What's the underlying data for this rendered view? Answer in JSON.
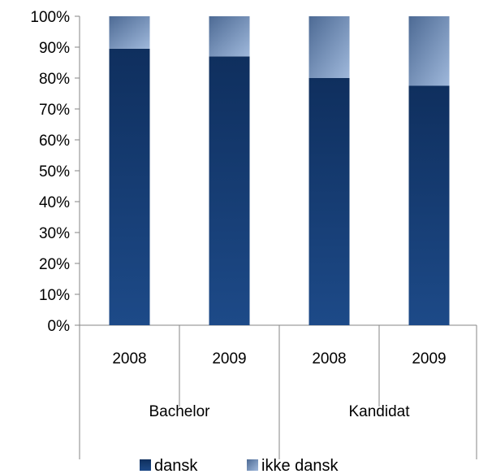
{
  "chart_data": {
    "type": "bar",
    "stacked": true,
    "percent": true,
    "groups": [
      {
        "label": "Bachelor",
        "categories": [
          "2008",
          "2009"
        ]
      },
      {
        "label": "Kandidat",
        "categories": [
          "2008",
          "2009"
        ]
      }
    ],
    "categories": [
      "2008",
      "2009",
      "2008",
      "2009"
    ],
    "series": [
      {
        "name": "dansk",
        "color": "#17407a",
        "values": [
          89.5,
          87,
          80,
          77.5
        ]
      },
      {
        "name": "ikke dansk",
        "color": "#7f9cc6",
        "values": [
          10.5,
          13,
          20,
          22.5
        ]
      }
    ],
    "y_ticks": [
      "0%",
      "10%",
      "20%",
      "30%",
      "40%",
      "50%",
      "60%",
      "70%",
      "80%",
      "90%",
      "100%"
    ],
    "ylim": [
      0,
      100
    ],
    "grid": false,
    "legend_position": "bottom"
  }
}
